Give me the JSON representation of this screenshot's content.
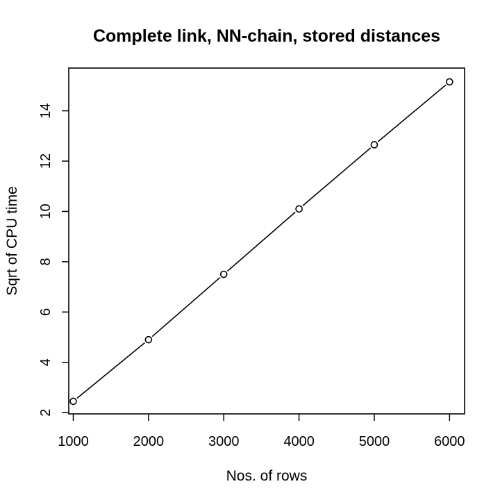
{
  "chart_data": {
    "type": "line",
    "title": "Complete link, NN-chain, stored distances",
    "xlabel": "Nos. of rows",
    "ylabel": "Sqrt of CPU time",
    "x": [
      1000,
      2000,
      3000,
      4000,
      5000,
      6000
    ],
    "series": [
      {
        "values": [
          2.45,
          4.9,
          7.5,
          10.1,
          12.65,
          15.15
        ]
      }
    ],
    "xlim": [
      940,
      6200
    ],
    "ylim": [
      1.95,
      15.7
    ],
    "xticks": [
      1000,
      2000,
      3000,
      4000,
      5000,
      6000
    ],
    "yticks": [
      2,
      4,
      6,
      8,
      10,
      12,
      14
    ],
    "xtick_labels": [
      "1000",
      "2000",
      "3000",
      "4000",
      "5000",
      "6000"
    ],
    "ytick_labels": [
      "2",
      "4",
      "6",
      "8",
      "10",
      "12",
      "14"
    ],
    "grid": false,
    "marker": "open-circle",
    "line_color": "#000000"
  }
}
